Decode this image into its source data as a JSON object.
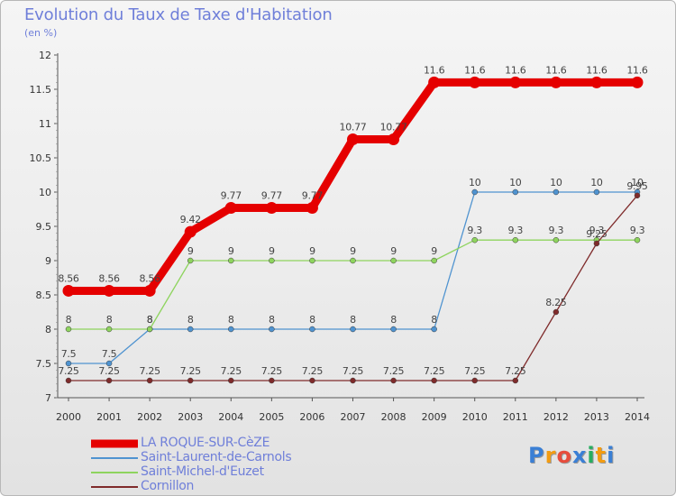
{
  "title": "Evolution du Taux de Taxe d'Habitation",
  "unit_label": "(en %)",
  "brand": {
    "letters": [
      "P",
      "r",
      "o",
      "x",
      "i",
      "t",
      "i"
    ],
    "colors": [
      "#3a7fd5",
      "#f39c12",
      "#e74c3c",
      "#3a7fd5",
      "#27ae60",
      "#f39c12",
      "#3a7fd5"
    ]
  },
  "chart_data": {
    "type": "line",
    "title": "Evolution du Taux de Taxe d'Habitation",
    "ylabel": "(en %)",
    "xlabel": "",
    "x": [
      "2000",
      "2001",
      "2002",
      "2003",
      "2004",
      "2005",
      "2006",
      "2007",
      "2008",
      "2009",
      "2010",
      "2011",
      "2012",
      "2013",
      "2014"
    ],
    "ylim": [
      7,
      12
    ],
    "yticks": [
      "7",
      "7.5",
      "8",
      "8.5",
      "9",
      "9.5",
      "10",
      "10.5",
      "11",
      "11.5",
      "12"
    ],
    "grid": false,
    "legend": "bottom-left",
    "series": [
      {
        "name": "LA ROQUE-SUR-CèZE",
        "color": "#e50000",
        "values": [
          8.56,
          8.56,
          8.56,
          9.42,
          9.77,
          9.77,
          9.77,
          10.77,
          10.77,
          11.6,
          11.6,
          11.6,
          11.6,
          11.6,
          11.6
        ],
        "labels": [
          "8.56",
          "8.56",
          "8.56",
          "9.42",
          "9.77",
          "9.77",
          "9.77",
          "10.77",
          "10.77",
          "11.6",
          "11.6",
          "11.6",
          "11.6",
          "11.6",
          "11.6"
        ]
      },
      {
        "name": "Saint-Laurent-de-Carnols",
        "color": "#4f93d0",
        "values": [
          7.5,
          7.5,
          8,
          8,
          8,
          8,
          8,
          8,
          8,
          8,
          10,
          10,
          10,
          10,
          10
        ],
        "labels": [
          "7.5",
          "7.5",
          "8",
          "8",
          "8",
          "8",
          "8",
          "8",
          "8",
          "8",
          "10",
          "10",
          "10",
          "10",
          "10"
        ]
      },
      {
        "name": "Saint-Michel-d'Euzet",
        "color": "#8ed45e",
        "values": [
          8,
          8,
          8,
          9,
          9,
          9,
          9,
          9,
          9,
          9,
          9.3,
          9.3,
          9.3,
          9.3,
          9.3
        ],
        "labels": [
          "8",
          "8",
          "8",
          "9",
          "9",
          "9",
          "9",
          "9",
          "9",
          "9",
          "9.3",
          "9.3",
          "9.3",
          "9.3",
          "9.3"
        ]
      },
      {
        "name": "Cornillon",
        "color": "#7f2b2b",
        "values": [
          7.25,
          7.25,
          7.25,
          7.25,
          7.25,
          7.25,
          7.25,
          7.25,
          7.25,
          7.25,
          7.25,
          7.25,
          8.25,
          9.25,
          9.95
        ],
        "labels": [
          "7.25",
          "7.25",
          "7.25",
          "7.25",
          "7.25",
          "7.25",
          "7.25",
          "7.25",
          "7.25",
          "7.25",
          "7.25",
          "7.25",
          "8.25",
          "9.25",
          "9.95"
        ]
      }
    ]
  }
}
